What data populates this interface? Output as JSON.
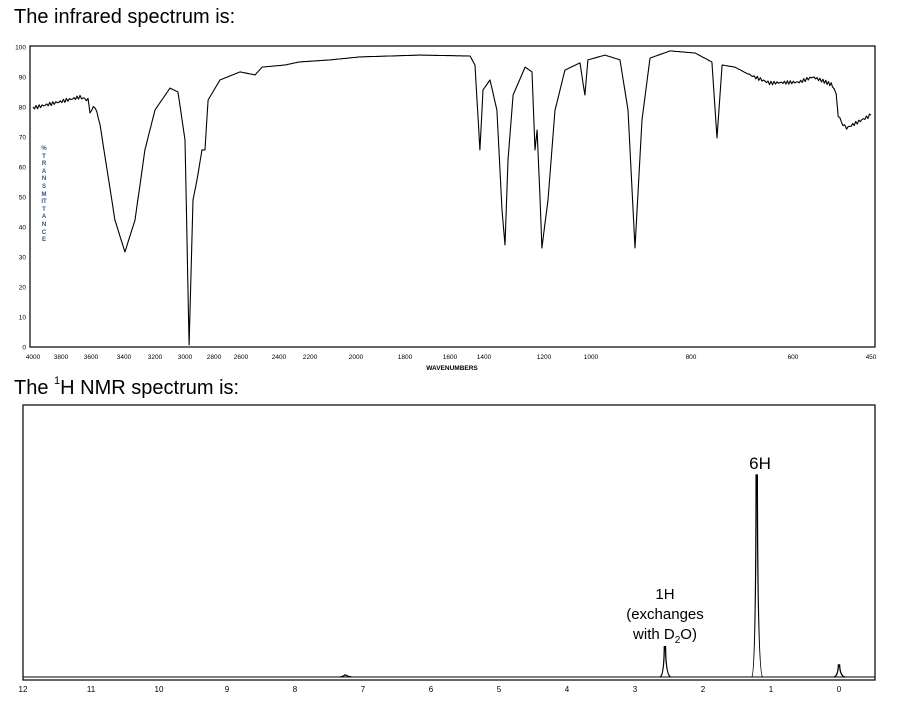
{
  "headings": {
    "ir_title": "The infrared spectrum is:",
    "nmr_title_prefix": "The ",
    "nmr_title_sup": "1",
    "nmr_title_suffix": "H NMR spectrum is:"
  },
  "chart_data": [
    {
      "type": "line",
      "title": "",
      "xlabel": "WAVENUMBERS",
      "ylabel": "%TRANSMITTANCE",
      "xlim": [
        4000,
        450
      ],
      "ylim": [
        0,
        100
      ],
      "x_ticks": [
        4000,
        3800,
        3600,
        3400,
        3200,
        3000,
        2800,
        2600,
        2400,
        2200,
        2000,
        1800,
        1600,
        1400,
        1200,
        1000,
        800,
        600,
        450
      ],
      "y_ticks": [
        0,
        10,
        20,
        30,
        40,
        50,
        60,
        70,
        80,
        90,
        100
      ],
      "grid": false,
      "line_color": "#000000",
      "ylabel_color": "#3a4f8a",
      "series": [
        {
          "x": [
            4000,
            3673,
            3620,
            3607,
            3576,
            3545,
            3455,
            3394,
            3329,
            3265,
            3200,
            3100,
            3047,
            3000,
            2972,
            2945,
            2917,
            2883,
            2862,
            2841,
            2756,
            2607,
            2526,
            2489,
            2361,
            2271,
            2113,
            1984,
            1733,
            1482,
            1453,
            1424,
            1406,
            1380,
            1357,
            1340,
            1330,
            1320,
            1303,
            1263,
            1240,
            1230,
            1223,
            1213,
            1207,
            1183,
            1153,
            1111,
            1047,
            1026,
            1013,
            972,
            942,
            926,
            912,
            898,
            882,
            842,
            792,
            759,
            749,
            739,
            714,
            685,
            646,
            588,
            562,
            537,
            524,
            517,
            513,
            504,
            497,
            450
          ],
          "y": [
            79.7,
            83.3,
            82.3,
            78.3,
            80.3,
            74,
            42.3,
            31.7,
            42.3,
            65.7,
            79,
            86.3,
            85,
            69,
            0.7,
            49,
            55.7,
            65.7,
            65.7,
            82.3,
            89,
            91.7,
            90.7,
            93.3,
            94,
            95,
            95.7,
            96.7,
            97.3,
            97,
            94,
            65.7,
            85.7,
            89,
            79,
            45.7,
            34,
            62.3,
            84,
            93.3,
            91.7,
            65.7,
            72.3,
            49,
            33,
            49,
            79,
            92.3,
            94.7,
            84,
            95.7,
            97.3,
            95.7,
            79,
            33,
            75.7,
            96.3,
            98.7,
            98,
            95,
            69.7,
            94,
            93.3,
            90.7,
            88,
            88.3,
            90,
            88.3,
            87.3,
            84,
            77.3,
            74,
            73,
            77.3
          ]
        }
      ]
    },
    {
      "type": "line",
      "title": "",
      "xlabel": "",
      "ylabel": "",
      "xlim": [
        12,
        -0.5
      ],
      "x_ticks": [
        12,
        11,
        10,
        9,
        8,
        7,
        6,
        5,
        4,
        3,
        2,
        1,
        0
      ],
      "grid": false,
      "peaks": [
        {
          "ppm": 7.26,
          "relative_height": 0.01
        },
        {
          "ppm": 2.56,
          "relative_height": 0.15,
          "label": "1H",
          "note_line1": "(exchanges",
          "note_line2_prefix": "with D",
          "note_line2_sub": "2",
          "note_line2_suffix": "O)"
        },
        {
          "ppm": 1.21,
          "relative_height": 1.0,
          "label": "6H"
        },
        {
          "ppm": 0.0,
          "relative_height": 0.06
        }
      ]
    }
  ]
}
